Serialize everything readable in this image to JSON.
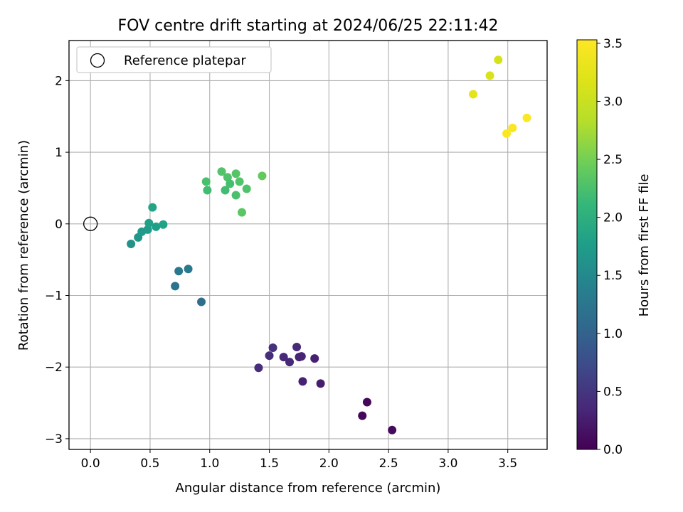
{
  "chart_data": {
    "type": "scatter",
    "title": "FOV centre drift starting at 2024/06/25 22:11:42",
    "xlabel": "Angular distance from reference (arcmin)",
    "ylabel": "Rotation from reference (arcmin)",
    "xlim": [
      -0.18,
      3.83
    ],
    "ylim": [
      -3.15,
      2.56
    ],
    "xticks": [
      0.0,
      0.5,
      1.0,
      1.5,
      2.0,
      2.5,
      3.0,
      3.5
    ],
    "xtick_labels": [
      "0.0",
      "0.5",
      "1.0",
      "1.5",
      "2.0",
      "2.5",
      "3.0",
      "3.5"
    ],
    "yticks": [
      -3,
      -2,
      -1,
      0,
      1,
      2
    ],
    "ytick_labels": [
      "−3",
      "−2",
      "−1",
      "0",
      "1",
      "2"
    ],
    "grid": true,
    "legend": {
      "location": "upper-left",
      "entries": [
        "Reference platepar"
      ]
    },
    "reference_point": {
      "x": 0.0,
      "y": 0.0
    },
    "colorbar": {
      "label": "Hours from first FF file",
      "colormap": "viridis",
      "range": [
        0.0,
        3.53
      ],
      "ticks": [
        0.0,
        0.5,
        1.0,
        1.5,
        2.0,
        2.5,
        3.0,
        3.5
      ],
      "tick_labels": [
        "0.0",
        "0.5",
        "1.0",
        "1.5",
        "2.0",
        "2.5",
        "3.0",
        "3.5"
      ]
    },
    "points": [
      {
        "x": 2.28,
        "y": -2.68,
        "hours": 0.05
      },
      {
        "x": 2.32,
        "y": -2.49,
        "hours": 0.05
      },
      {
        "x": 2.53,
        "y": -2.88,
        "hours": 0.08
      },
      {
        "x": 1.41,
        "y": -2.01,
        "hours": 0.42
      },
      {
        "x": 1.5,
        "y": -1.84,
        "hours": 0.42
      },
      {
        "x": 1.53,
        "y": -1.73,
        "hours": 0.45
      },
      {
        "x": 1.62,
        "y": -1.86,
        "hours": 0.35
      },
      {
        "x": 1.67,
        "y": -1.93,
        "hours": 0.35
      },
      {
        "x": 1.73,
        "y": -1.72,
        "hours": 0.38
      },
      {
        "x": 1.75,
        "y": -1.86,
        "hours": 0.32
      },
      {
        "x": 1.77,
        "y": -1.85,
        "hours": 0.32
      },
      {
        "x": 1.78,
        "y": -2.2,
        "hours": 0.3
      },
      {
        "x": 1.88,
        "y": -1.88,
        "hours": 0.28
      },
      {
        "x": 1.93,
        "y": -2.23,
        "hours": 0.25
      },
      {
        "x": 0.71,
        "y": -0.87,
        "hours": 1.22
      },
      {
        "x": 0.74,
        "y": -0.66,
        "hours": 1.28
      },
      {
        "x": 0.82,
        "y": -0.63,
        "hours": 1.3
      },
      {
        "x": 0.93,
        "y": -1.09,
        "hours": 1.15
      },
      {
        "x": 0.34,
        "y": -0.28,
        "hours": 1.62
      },
      {
        "x": 0.4,
        "y": -0.19,
        "hours": 1.66
      },
      {
        "x": 0.43,
        "y": -0.11,
        "hours": 1.72
      },
      {
        "x": 0.48,
        "y": -0.08,
        "hours": 1.75
      },
      {
        "x": 0.49,
        "y": 0.01,
        "hours": 1.8
      },
      {
        "x": 0.52,
        "y": 0.23,
        "hours": 1.85
      },
      {
        "x": 0.55,
        "y": -0.04,
        "hours": 1.78
      },
      {
        "x": 0.61,
        "y": -0.01,
        "hours": 1.82
      },
      {
        "x": 0.97,
        "y": 0.59,
        "hours": 2.25
      },
      {
        "x": 0.98,
        "y": 0.47,
        "hours": 2.2
      },
      {
        "x": 1.1,
        "y": 0.73,
        "hours": 2.3
      },
      {
        "x": 1.13,
        "y": 0.47,
        "hours": 2.2
      },
      {
        "x": 1.15,
        "y": 0.65,
        "hours": 2.28
      },
      {
        "x": 1.17,
        "y": 0.56,
        "hours": 2.22
      },
      {
        "x": 1.22,
        "y": 0.7,
        "hours": 2.32
      },
      {
        "x": 1.22,
        "y": 0.4,
        "hours": 2.25
      },
      {
        "x": 1.25,
        "y": 0.59,
        "hours": 2.3
      },
      {
        "x": 1.27,
        "y": 0.16,
        "hours": 2.35
      },
      {
        "x": 1.31,
        "y": 0.49,
        "hours": 2.28
      },
      {
        "x": 1.44,
        "y": 0.67,
        "hours": 2.4
      },
      {
        "x": 3.21,
        "y": 1.81,
        "hours": 3.25
      },
      {
        "x": 3.35,
        "y": 2.07,
        "hours": 3.15
      },
      {
        "x": 3.42,
        "y": 2.29,
        "hours": 3.1
      },
      {
        "x": 3.49,
        "y": 1.26,
        "hours": 3.5
      },
      {
        "x": 3.54,
        "y": 1.34,
        "hours": 3.5
      },
      {
        "x": 3.66,
        "y": 1.48,
        "hours": 3.52
      }
    ]
  }
}
